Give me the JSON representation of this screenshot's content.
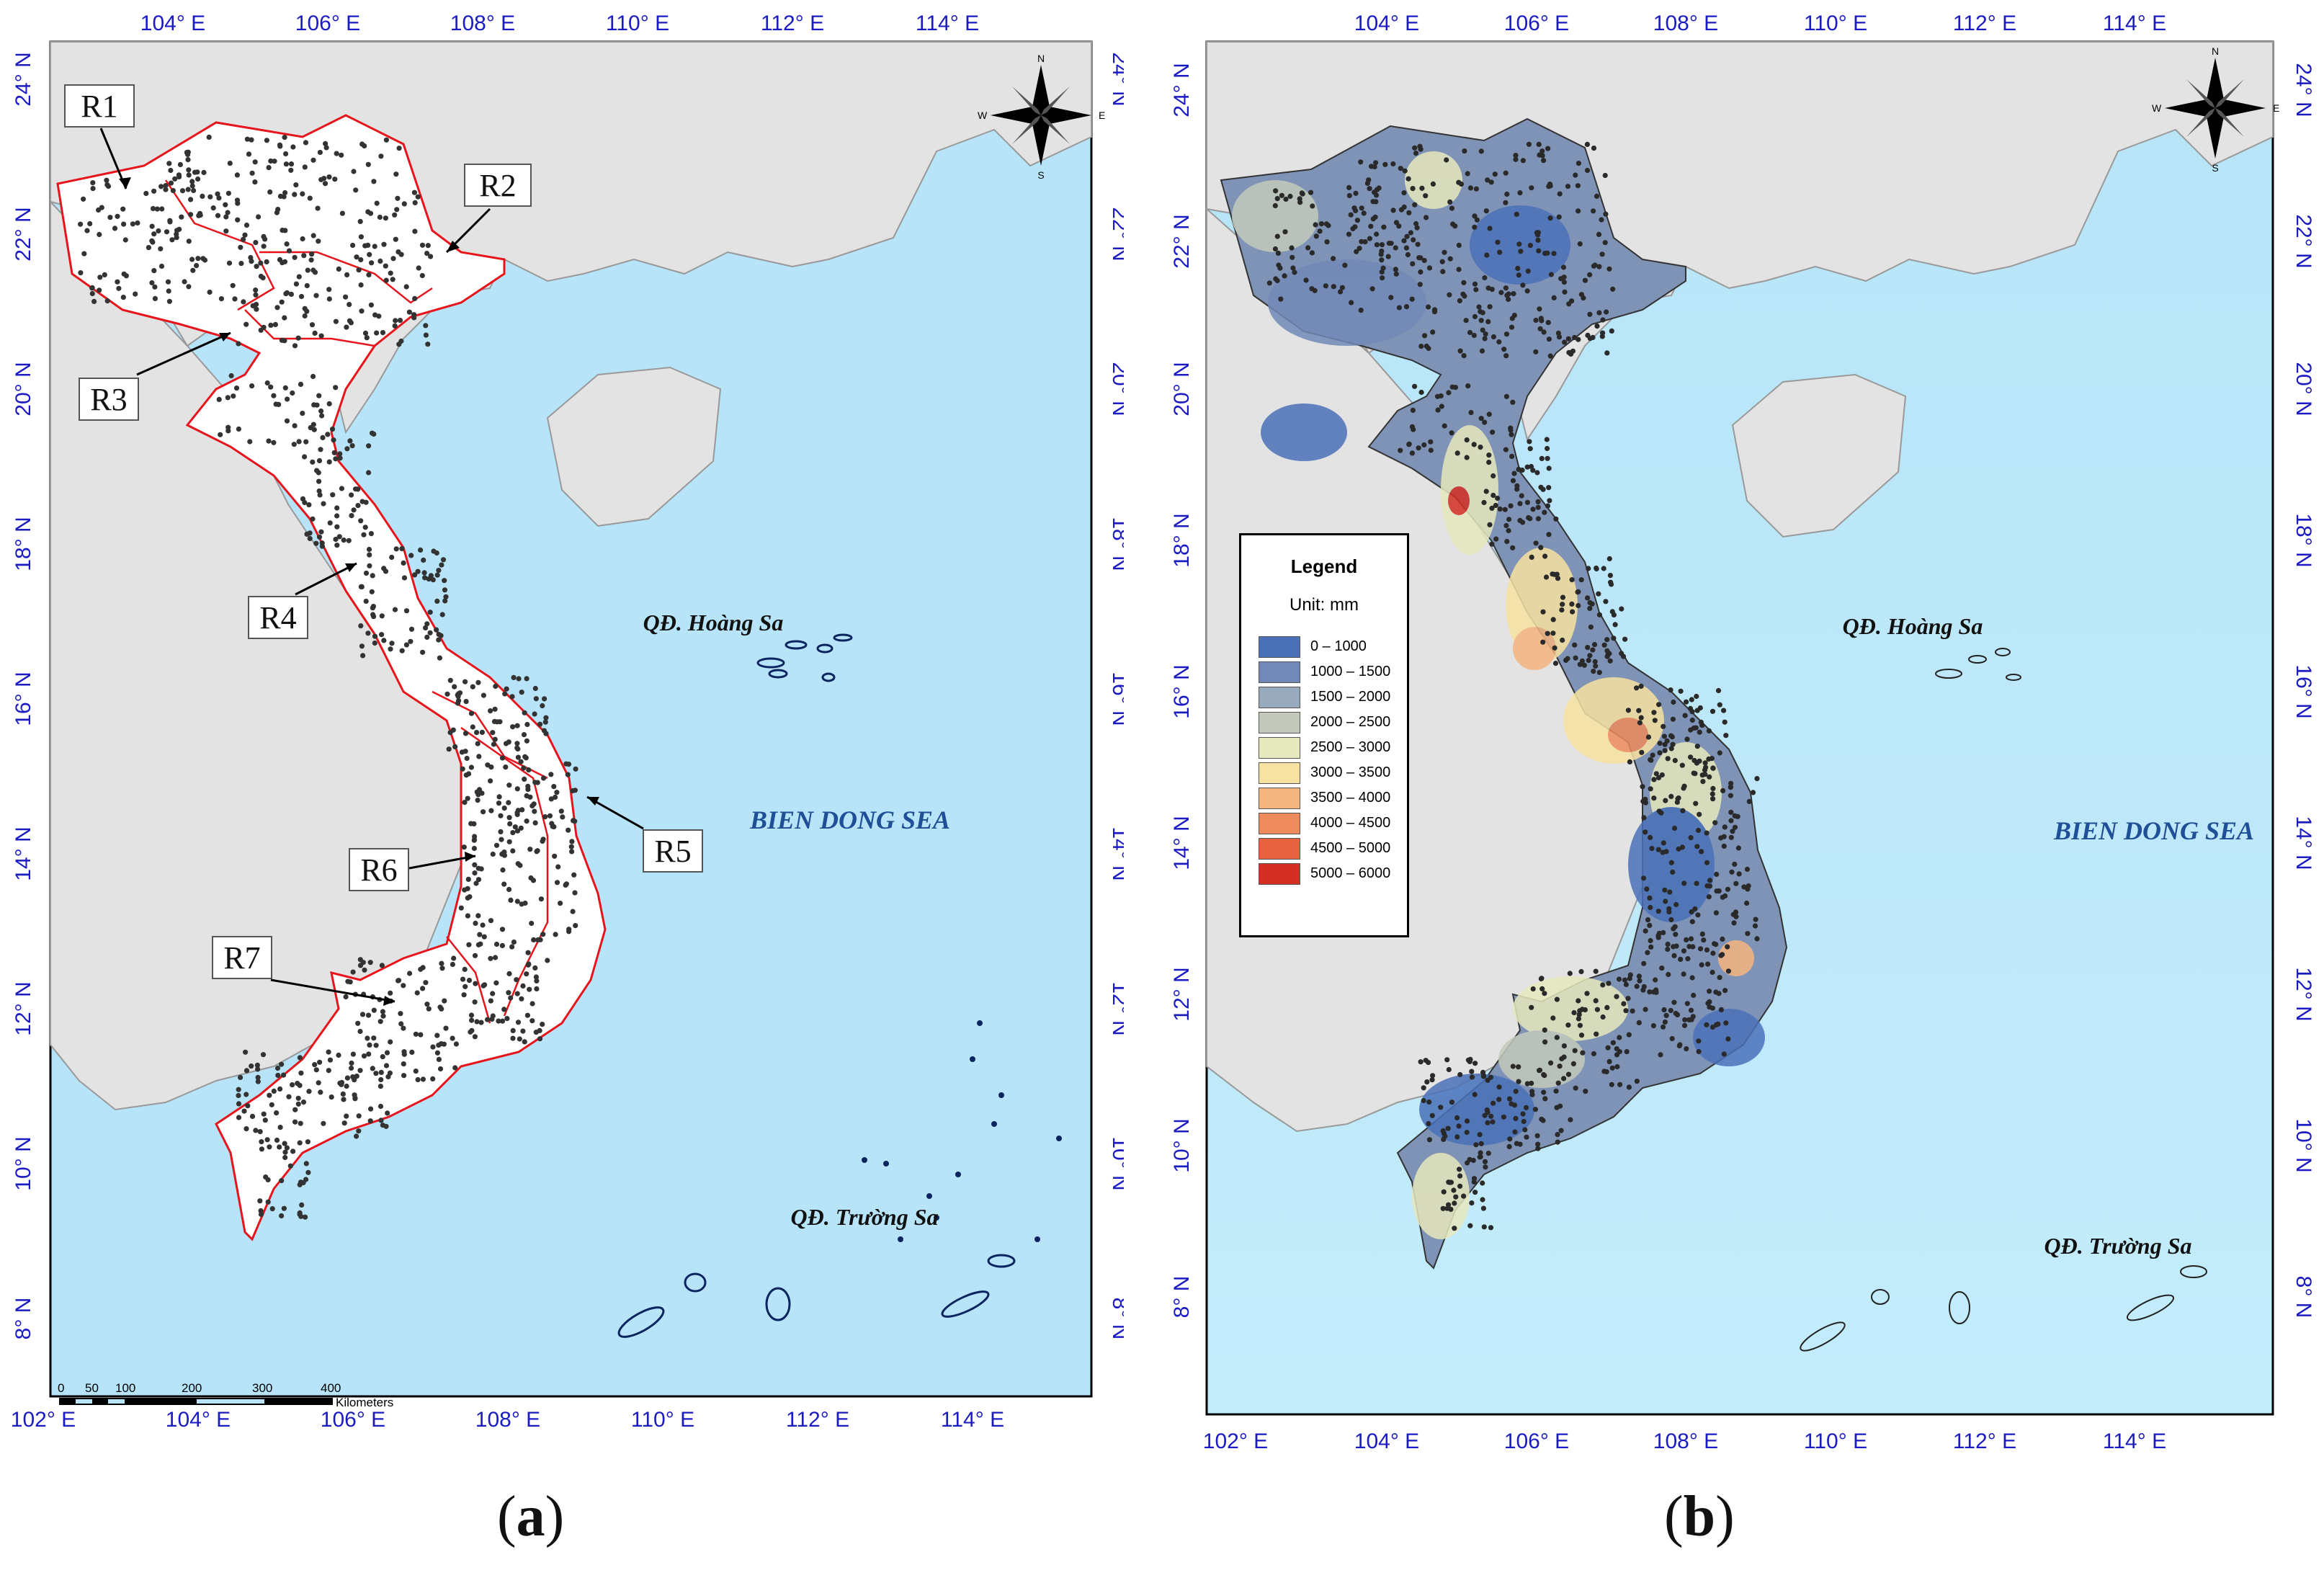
{
  "panel_a": {
    "caption": "a",
    "lon_labels": [
      "104° E",
      "106° E",
      "108° E",
      "110° E",
      "112° E",
      "114° E"
    ],
    "lon_labels_bottom": [
      "102° E",
      "104° E",
      "106° E",
      "108° E",
      "110° E",
      "112° E",
      "114° E"
    ],
    "lat_labels": [
      "24° N",
      "22° N",
      "20° N",
      "18° N",
      "16° N",
      "14° N",
      "12° N",
      "10° N",
      "8° N"
    ],
    "regions": [
      "R1",
      "R2",
      "R3",
      "R4",
      "R5",
      "R6",
      "R7"
    ],
    "sea_label": "BIEN DONG SEA",
    "island_hoang_sa": "QĐ. Hoàng Sa",
    "island_truong_sa": "QĐ. Trường Sa",
    "scale_ticks": [
      "0",
      "50",
      "100",
      "200",
      "300",
      "400"
    ],
    "scale_unit": "Kilometers",
    "compass": [
      "N",
      "S",
      "E",
      "W"
    ]
  },
  "panel_b": {
    "caption": "b",
    "lon_labels": [
      "104° E",
      "106° E",
      "108° E",
      "110° E",
      "112° E",
      "114° E"
    ],
    "lon_labels_bottom": [
      "102° E",
      "104° E",
      "106° E",
      "108° E",
      "110° E",
      "112° E",
      "114° E"
    ],
    "lat_labels": [
      "24° N",
      "22° N",
      "20° N",
      "18° N",
      "16° N",
      "14° N",
      "12° N",
      "10° N",
      "8° N"
    ],
    "sea_label": "BIEN DONG SEA",
    "island_hoang_sa": "QĐ. Hoàng Sa",
    "island_truong_sa": "QĐ. Trường Sa",
    "compass": [
      "N",
      "S",
      "E",
      "W"
    ],
    "legend": {
      "title": "Legend",
      "unit": "Unit: mm",
      "classes": [
        {
          "label": "0 – 1000",
          "color": "#4a71b8"
        },
        {
          "label": "1000 – 1500",
          "color": "#7189b6"
        },
        {
          "label": "1500 – 2000",
          "color": "#9aaabd"
        },
        {
          "label": "2000 – 2500",
          "color": "#c3cabb"
        },
        {
          "label": "2500 – 3000",
          "color": "#e6e8bd"
        },
        {
          "label": "3000 – 3500",
          "color": "#f7e2a2"
        },
        {
          "label": "3500 – 4000",
          "color": "#f4b57f"
        },
        {
          "label": "4000 – 4500",
          "color": "#ee8b5c"
        },
        {
          "label": "4500 – 5000",
          "color": "#e7623f"
        },
        {
          "label": "5000 – 6000",
          "color": "#d42f24"
        }
      ]
    }
  },
  "colors": {
    "sea": "#b7e4f8",
    "land": "#e3e3e3",
    "region_border": "#e8141c",
    "dots": "#333333",
    "coord_text": "#1b1bc4"
  }
}
